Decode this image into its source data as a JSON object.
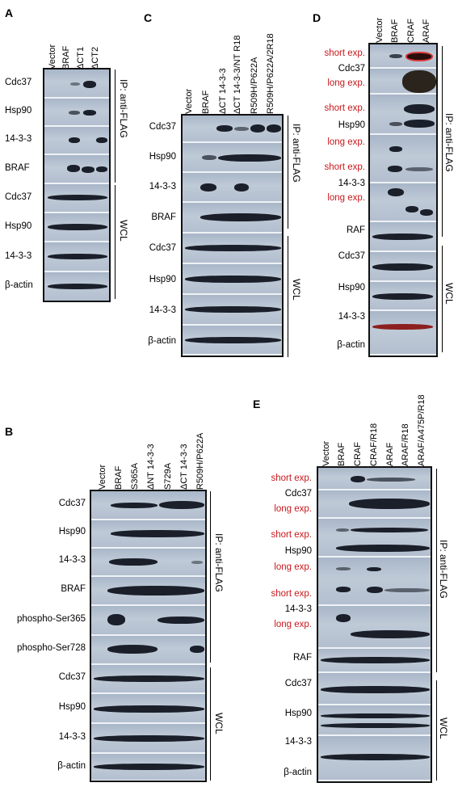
{
  "panels": {
    "A": {
      "letter": "A",
      "lanes": [
        "Vector",
        "BRAF",
        "ΔCT1",
        "ΔCT2"
      ],
      "rows": [
        "Cdc37",
        "Hsp90",
        "14-3-3",
        "BRAF",
        "Cdc37",
        "Hsp90",
        "14-3-3",
        "β-actin"
      ],
      "groups": [
        "IP: anti-FLAG",
        "WCL"
      ]
    },
    "B": {
      "letter": "B",
      "lanes": [
        "Vector",
        "BRAF",
        "S365A",
        "ΔNT 14-3-3",
        "S729A",
        "ΔCT 14-3-3",
        "R509H/P622A"
      ],
      "rows": [
        "Cdc37",
        "Hsp90",
        "14-3-3",
        "BRAF",
        "phospho-Ser365",
        "phospho-Ser728",
        "Cdc37",
        "Hsp90",
        "14-3-3",
        "β-actin"
      ],
      "groups": [
        "IP: anti-FLAG",
        "WCL"
      ]
    },
    "C": {
      "letter": "C",
      "lanes": [
        "Vector",
        "BRAF",
        "ΔCT 14-3-3",
        "ΔCT 14-3-3/NT R18",
        "R509H/P622A",
        "R509H/P622A/2R18"
      ],
      "rows": [
        "Cdc37",
        "Hsp90",
        "14-3-3",
        "BRAF",
        "Cdc37",
        "Hsp90",
        "14-3-3",
        "β-actin"
      ],
      "groups": [
        "IP: anti-FLAG",
        "WCL"
      ]
    },
    "D": {
      "letter": "D",
      "lanes": [
        "Vector",
        "BRAF",
        "CRAF",
        "ARAF"
      ],
      "rows": [
        "Cdc37",
        "Hsp90",
        "14-3-3",
        "RAF",
        "Cdc37",
        "Hsp90",
        "14-3-3",
        "β-actin"
      ],
      "short_exp": "short exp.",
      "long_exp": "long exp.",
      "groups": [
        "IP: anti-FLAG",
        "WCL"
      ]
    },
    "E": {
      "letter": "E",
      "lanes": [
        "Vector",
        "BRAF",
        "CRAF",
        "CRAF/R18",
        "ARAF",
        "ARAF/R18",
        "ARAF/A475P/R18"
      ],
      "rows": [
        "Cdc37",
        "Hsp90",
        "14-3-3",
        "RAF",
        "Cdc37",
        "Hsp90",
        "14-3-3",
        "β-actin"
      ],
      "short_exp": "short exp.",
      "long_exp": "long exp.",
      "groups": [
        "IP: anti-FLAG",
        "WCL"
      ]
    }
  }
}
